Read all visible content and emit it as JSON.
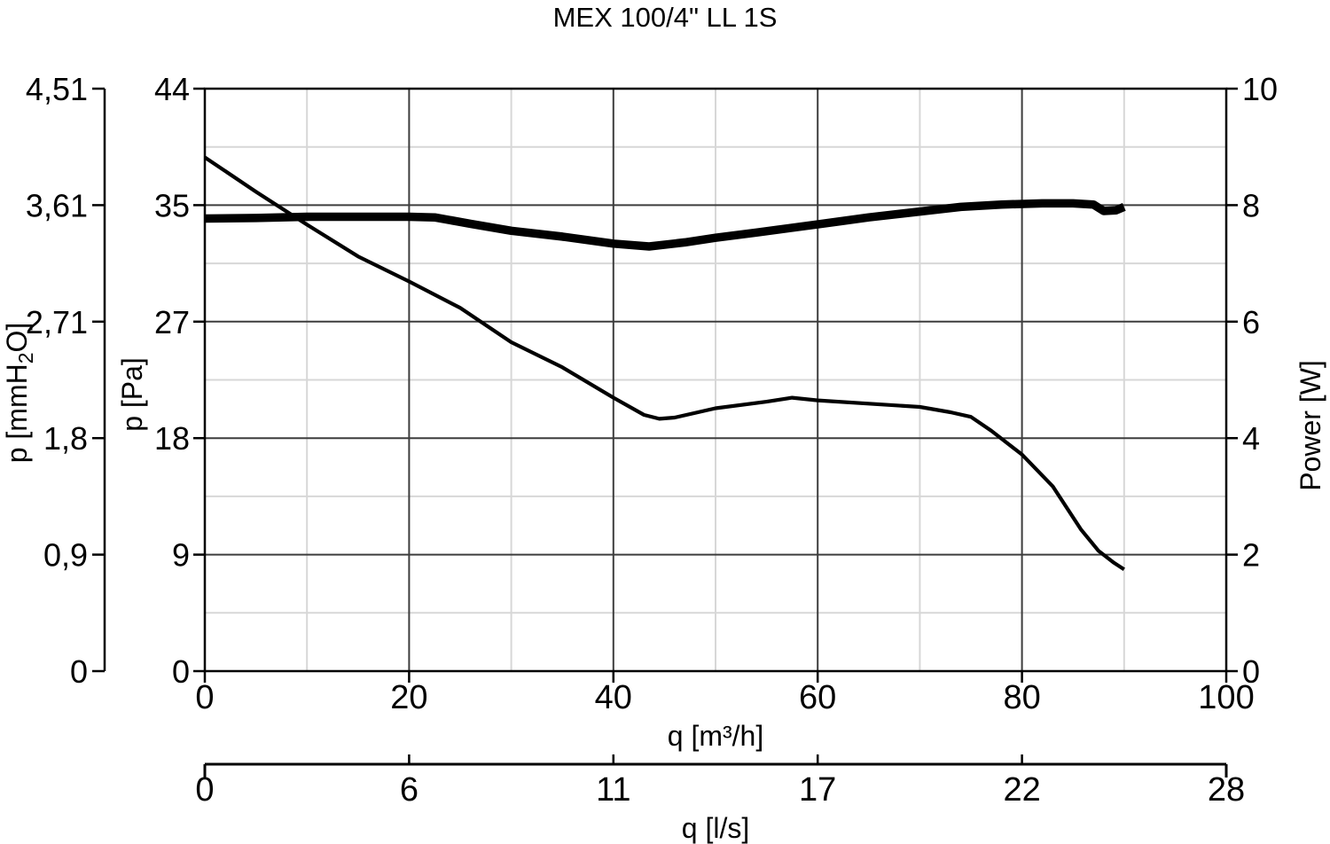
{
  "colors": {
    "background": "#ffffff",
    "ink": "#000000",
    "grid_major": "#3d3d3d",
    "grid_minor": "#d7d7d7"
  },
  "chart_data": {
    "type": "line",
    "title": "MEX 100/4\" LL 1S",
    "grid": {
      "major": true,
      "minor": true
    },
    "legend": "none",
    "axes": {
      "x_m3h": {
        "label": "q [m³/h]",
        "tick_values": [
          0,
          20,
          40,
          60,
          80,
          100
        ],
        "tick_labels": [
          "0",
          "20",
          "40",
          "60",
          "80",
          "100"
        ],
        "minor_tick_values": [
          10,
          30,
          50,
          70,
          90
        ],
        "range": [
          0,
          100
        ]
      },
      "x_ls": {
        "label": "q [l/s]",
        "tick_labels": [
          "0",
          "6",
          "11",
          "17",
          "22",
          "28"
        ]
      },
      "y_pa": {
        "label": "p [Pa]",
        "tick_labels": [
          "0",
          "9",
          "18",
          "27",
          "35",
          "44"
        ],
        "range": [
          0,
          44.1
        ]
      },
      "y_mmh2o": {
        "label_pre": "p [mmH",
        "label_sub": "2",
        "label_post": "O]",
        "tick_labels": [
          "0",
          "0,9",
          "1,8",
          "2,71",
          "3,61",
          "4,51"
        ]
      },
      "y_power": {
        "label": "Power [W]",
        "tick_values": [
          0,
          2,
          4,
          6,
          8,
          10
        ],
        "tick_labels": [
          "0",
          "2",
          "4",
          "6",
          "8",
          "10"
        ],
        "range": [
          0,
          10
        ]
      }
    },
    "series": [
      {
        "name": "pressure-curve",
        "unit": "Pa",
        "y_axis": "y_pa",
        "line_width": 4.2,
        "points": [
          [
            0,
            38.9
          ],
          [
            5,
            36.3
          ],
          [
            10,
            33.8
          ],
          [
            15,
            31.4
          ],
          [
            20,
            29.5
          ],
          [
            25,
            27.5
          ],
          [
            30,
            24.9
          ],
          [
            35,
            23.0
          ],
          [
            40,
            20.7
          ],
          [
            43,
            19.4
          ],
          [
            44.5,
            19.1
          ],
          [
            46,
            19.2
          ],
          [
            50,
            19.9
          ],
          [
            55,
            20.4
          ],
          [
            57.5,
            20.7
          ],
          [
            60,
            20.5
          ],
          [
            65,
            20.25
          ],
          [
            70,
            20.0
          ],
          [
            73,
            19.6
          ],
          [
            75,
            19.25
          ],
          [
            77,
            18.2
          ],
          [
            80,
            16.4
          ],
          [
            83,
            14.0
          ],
          [
            85.8,
            10.7
          ],
          [
            87.5,
            9.1
          ],
          [
            89,
            8.2
          ],
          [
            90,
            7.7
          ]
        ]
      },
      {
        "name": "power-curve",
        "unit": "W",
        "y_axis": "y_power",
        "line_width": 9.5,
        "points": [
          [
            0,
            7.77
          ],
          [
            5,
            7.78
          ],
          [
            10,
            7.8
          ],
          [
            15,
            7.8
          ],
          [
            20,
            7.8
          ],
          [
            22.5,
            7.79
          ],
          [
            26,
            7.68
          ],
          [
            30,
            7.56
          ],
          [
            35,
            7.46
          ],
          [
            40,
            7.34
          ],
          [
            43.5,
            7.29
          ],
          [
            47,
            7.36
          ],
          [
            50,
            7.44
          ],
          [
            54,
            7.53
          ],
          [
            60,
            7.67
          ],
          [
            65,
            7.79
          ],
          [
            70,
            7.89
          ],
          [
            74,
            7.97
          ],
          [
            78,
            8.01
          ],
          [
            82,
            8.03
          ],
          [
            85,
            8.03
          ],
          [
            87,
            8.01
          ],
          [
            88,
            7.9
          ],
          [
            89.2,
            7.91
          ],
          [
            90,
            7.97
          ]
        ]
      }
    ]
  }
}
